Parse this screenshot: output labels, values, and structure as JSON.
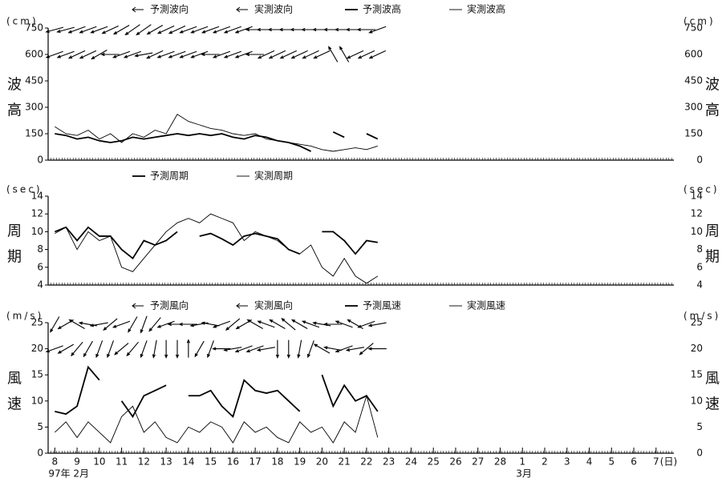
{
  "chart_data": [
    {
      "type": "line",
      "unit": "(cm)",
      "ylabel": "波高",
      "xlim": [
        7.7,
        35.8
      ],
      "ylim": [
        0,
        750
      ],
      "yticks": [
        0,
        150,
        300,
        450,
        600,
        750
      ],
      "x": [
        8,
        8.5,
        9,
        9.5,
        10,
        10.5,
        11,
        11.5,
        12,
        12.5,
        13,
        13.5,
        14,
        14.5,
        15,
        15.5,
        16,
        16.5,
        17,
        17.5,
        18,
        18.5,
        19,
        19.5,
        20,
        20.5,
        21,
        21.5,
        22,
        22.5
      ],
      "direction_series": [
        {
          "name": "予測波向",
          "color": "#000",
          "values": [
            255,
            255,
            250,
            250,
            250,
            245,
            240,
            235,
            235,
            240,
            245,
            245,
            250,
            250,
            250,
            250,
            250,
            250,
            270,
            270,
            270,
            270,
            270,
            270,
            270,
            270,
            270,
            270,
            270,
            250
          ]
        },
        {
          "name": "実測波向",
          "color": "#000",
          "values": [
            250,
            250,
            245,
            245,
            240,
            270,
            250,
            250,
            260,
            245,
            250,
            250,
            250,
            250,
            270,
            250,
            250,
            250,
            270,
            245,
            245,
            245,
            245,
            245,
            245,
            330,
            330,
            245,
            245,
            245
          ]
        }
      ],
      "series": [
        {
          "name": "予測波高",
          "color": "#000",
          "values": [
            150,
            140,
            120,
            130,
            110,
            100,
            110,
            130,
            120,
            130,
            140,
            150,
            140,
            150,
            140,
            150,
            130,
            120,
            140,
            130,
            110,
            100,
            80,
            50,
            null,
            160,
            130,
            null,
            150,
            120
          ]
        },
        {
          "name": "実測波高",
          "color": "#000",
          "values": [
            190,
            150,
            140,
            170,
            120,
            150,
            100,
            150,
            130,
            170,
            150,
            260,
            220,
            200,
            180,
            170,
            150,
            140,
            150,
            120,
            110,
            100,
            90,
            80,
            60,
            50,
            60,
            70,
            60,
            80
          ]
        }
      ]
    },
    {
      "type": "line",
      "unit": "(sec)",
      "ylabel": "周期",
      "xlim": [
        7.7,
        35.8
      ],
      "ylim": [
        4,
        14
      ],
      "yticks": [
        4,
        6,
        8,
        10,
        12,
        14
      ],
      "x": [
        8,
        8.5,
        9,
        9.5,
        10,
        10.5,
        11,
        11.5,
        12,
        12.5,
        13,
        13.5,
        14,
        14.5,
        15,
        15.5,
        16,
        16.5,
        17,
        17.5,
        18,
        18.5,
        19,
        19.5,
        20,
        20.5,
        21,
        21.5,
        22,
        22.5
      ],
      "series": [
        {
          "name": "予測周期",
          "color": "#000",
          "values": [
            10,
            10.5,
            9,
            10.5,
            9.5,
            9.5,
            8,
            7,
            9,
            8.5,
            9,
            10,
            null,
            9.5,
            9.8,
            9.2,
            8.5,
            9.5,
            9.8,
            9.5,
            9.2,
            8,
            7.5,
            null,
            10,
            10,
            9,
            7.5,
            9,
            8.8
          ]
        },
        {
          "name": "実測周期",
          "color": "#000",
          "values": [
            9.8,
            10.5,
            8,
            10,
            9,
            9.5,
            6,
            5.5,
            7,
            8.5,
            10,
            11,
            11.5,
            11,
            12,
            11.5,
            11,
            9,
            10,
            9.5,
            9,
            8,
            7.5,
            8.5,
            6,
            5,
            7,
            5,
            4.2,
            5
          ]
        }
      ]
    },
    {
      "type": "line",
      "unit": "(m/s)",
      "ylabel": "風速",
      "xlim": [
        7.7,
        35.8
      ],
      "ylim": [
        0,
        25
      ],
      "yticks": [
        0,
        5,
        10,
        15,
        20,
        25
      ],
      "xticks": [
        8,
        9,
        10,
        11,
        12,
        13,
        14,
        15,
        16,
        17,
        18,
        19,
        20,
        21,
        22,
        23,
        24,
        25,
        26,
        27,
        28,
        {
          "value": 29,
          "label": "1"
        },
        {
          "value": 30,
          "label": "2"
        },
        {
          "value": 31,
          "label": "3"
        },
        {
          "value": 32,
          "label": "4"
        },
        {
          "value": 33,
          "label": "5"
        },
        {
          "value": 34,
          "label": "6"
        },
        {
          "value": 35,
          "label": "7"
        }
      ],
      "x_unit": "(日)",
      "month_labels": [
        {
          "value": 8,
          "label": "97年 2月"
        },
        {
          "value": 29,
          "label": "3月"
        }
      ],
      "x": [
        8,
        8.5,
        9,
        9.5,
        10,
        10.5,
        11,
        11.5,
        12,
        12.5,
        13,
        13.5,
        14,
        14.5,
        15,
        15.5,
        16,
        16.5,
        17,
        17.5,
        18,
        18.5,
        19,
        19.5,
        20,
        20.5,
        21,
        21.5,
        22,
        22.5
      ],
      "direction_series": [
        {
          "name": "予測風向",
          "color": "#000",
          "values": [
            210,
            240,
            300,
            280,
            260,
            230,
            250,
            210,
            200,
            220,
            250,
            270,
            270,
            260,
            280,
            250,
            230,
            240,
            300,
            290,
            300,
            310,
            300,
            290,
            280,
            270,
            290,
            300,
            250,
            260
          ]
        },
        {
          "name": "実測風向",
          "color": "#000",
          "values": [
            250,
            240,
            220,
            210,
            200,
            200,
            230,
            220,
            200,
            190,
            180,
            180,
            0,
            210,
            200,
            270,
            260,
            250,
            250,
            260,
            180,
            180,
            190,
            200,
            300,
            280,
            250,
            260,
            230,
            270
          ]
        }
      ],
      "series": [
        {
          "name": "予測風速",
          "color": "#000",
          "values": [
            8,
            7.5,
            9,
            16.5,
            14,
            null,
            10,
            7,
            11,
            12,
            13,
            null,
            11,
            11,
            12,
            9,
            7,
            14,
            12,
            11.5,
            12,
            10,
            8,
            null,
            15,
            9,
            13,
            10,
            11,
            8
          ]
        },
        {
          "name": "実測風速",
          "color": "#000",
          "values": [
            4,
            6,
            3,
            6,
            4,
            2,
            7,
            9,
            4,
            6,
            3,
            2,
            5,
            4,
            6,
            5,
            2,
            6,
            4,
            5,
            3,
            2,
            6,
            4,
            5,
            2,
            6,
            4,
            11,
            3
          ]
        }
      ]
    }
  ]
}
